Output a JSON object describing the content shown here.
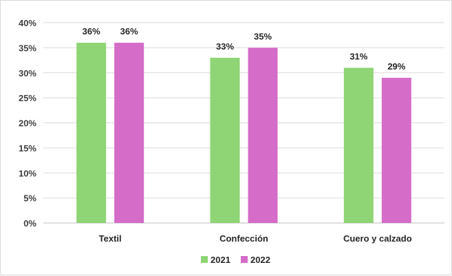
{
  "chart_data": {
    "type": "bar",
    "title": "",
    "xlabel": "",
    "ylabel": "",
    "categories": [
      "Textil",
      "Confección",
      "Cuero y calzado"
    ],
    "series": [
      {
        "name": "2021",
        "color": "#8fd475",
        "values": [
          36,
          33,
          31
        ],
        "labels": [
          "36%",
          "33%",
          "31%"
        ]
      },
      {
        "name": "2022",
        "color": "#d46cc8",
        "values": [
          36,
          35,
          29
        ],
        "labels": [
          "36%",
          "35%",
          "29%"
        ]
      }
    ],
    "ylim": [
      0,
      40
    ],
    "y_ticks": [
      "0%",
      "5%",
      "10%",
      "15%",
      "20%",
      "25%",
      "30%",
      "35%",
      "40%"
    ],
    "grid": true,
    "legend_position": "bottom"
  }
}
